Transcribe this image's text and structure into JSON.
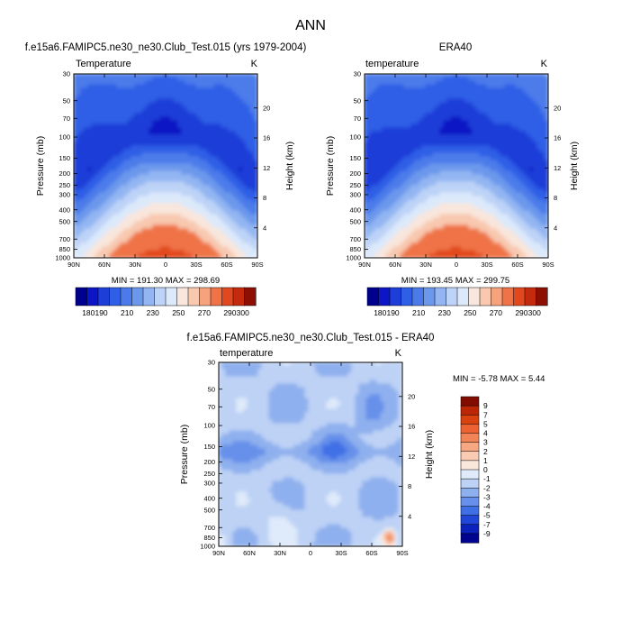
{
  "figure": {
    "main_title": "ANN"
  },
  "chart_data": [
    {
      "type": "heatmap",
      "title": "f.e15a6.FAMIPC5.ne30_ne30.Club_Test.015 (yrs 1979-2004)",
      "left_label": "Temperature",
      "units": "K",
      "xlabel": "",
      "ylabel": "Pressure (mb)",
      "y2label": "Height (km)",
      "x_ticks": [
        "90N",
        "60N",
        "30N",
        "0",
        "30S",
        "60S",
        "90S"
      ],
      "x_range": [
        90,
        -90
      ],
      "y_ticks": [
        30,
        50,
        70,
        100,
        150,
        200,
        250,
        300,
        400,
        500,
        700,
        850,
        1000
      ],
      "y_range": [
        30,
        1000
      ],
      "y_scale": "log",
      "y2_ticks": [
        4,
        8,
        12,
        16,
        20
      ],
      "stats": "MIN = 191.30  MAX = 298.69",
      "min": 191.3,
      "max": 298.69,
      "colorbar": {
        "levels": [
          180,
          190,
          200,
          210,
          220,
          230,
          240,
          250,
          260,
          270,
          280,
          290,
          300
        ],
        "labels": [
          "180",
          "190",
          "210",
          "230",
          "250",
          "270",
          "290",
          "300"
        ],
        "label_values": [
          180,
          190,
          210,
          230,
          250,
          270,
          290,
          300
        ]
      }
    },
    {
      "type": "heatmap",
      "title": "ERA40",
      "left_label": "temperature",
      "units": "K",
      "xlabel": "",
      "ylabel": "Pressure (mb)",
      "y2label": "Height (km)",
      "x_ticks": [
        "90N",
        "60N",
        "30N",
        "0",
        "30S",
        "60S",
        "90S"
      ],
      "x_range": [
        90,
        -90
      ],
      "y_ticks": [
        30,
        50,
        70,
        100,
        150,
        200,
        250,
        300,
        400,
        500,
        700,
        850,
        1000
      ],
      "y_range": [
        30,
        1000
      ],
      "y_scale": "log",
      "y2_ticks": [
        4,
        8,
        12,
        16,
        20
      ],
      "stats": "MIN = 193.45  MAX = 299.75",
      "min": 193.45,
      "max": 299.75,
      "colorbar": {
        "levels": [
          180,
          190,
          200,
          210,
          220,
          230,
          240,
          250,
          260,
          270,
          280,
          290,
          300
        ],
        "labels": [
          "180",
          "190",
          "210",
          "230",
          "250",
          "270",
          "290",
          "300"
        ],
        "label_values": [
          180,
          190,
          210,
          230,
          250,
          270,
          290,
          300
        ]
      }
    },
    {
      "type": "heatmap",
      "title": "f.e15a6.FAMIPC5.ne30_ne30.Club_Test.015 - ERA40",
      "left_label": "temperature",
      "units": "K",
      "xlabel": "",
      "ylabel": "Pressure (mb)",
      "y2label": "Height (km)",
      "x_ticks": [
        "90N",
        "60N",
        "30N",
        "0",
        "30S",
        "60S",
        "90S"
      ],
      "x_range": [
        90,
        -90
      ],
      "y_ticks": [
        30,
        50,
        70,
        100,
        150,
        200,
        250,
        300,
        400,
        500,
        700,
        850,
        1000
      ],
      "y_range": [
        30,
        1000
      ],
      "y_scale": "log",
      "y2_ticks": [
        4,
        8,
        12,
        16,
        20
      ],
      "stats": "MIN =  -5.78  MAX =   5.44",
      "min": -5.78,
      "max": 5.44,
      "colorbar": {
        "labels": [
          "9",
          "7",
          "5",
          "4",
          "3",
          "2",
          "1",
          "0",
          "-1",
          "-2",
          "-3",
          "-4",
          "-5",
          "-7",
          "-9"
        ],
        "values": [
          9,
          7,
          5,
          4,
          3,
          2,
          1,
          0,
          -1,
          -2,
          -3,
          -4,
          -5,
          -7,
          -9
        ]
      }
    }
  ],
  "colors": {
    "temperature_scale": [
      "#00008e",
      "#0c16c4",
      "#1e3ed8",
      "#2f5fe6",
      "#4b7bea",
      "#6c98ec",
      "#93b6f2",
      "#bdd3f7",
      "#dce9fb",
      "#f9e6dc",
      "#f8c8af",
      "#f5a27d",
      "#ef7347",
      "#e2481f",
      "#c42a0e",
      "#8d0f03"
    ],
    "difference_scale": [
      "#830c00",
      "#ba2606",
      "#d9410e",
      "#ec6232",
      "#f28558",
      "#f6a883",
      "#facbb3",
      "#fbe8dd",
      "#dfeafa",
      "#bdd2f5",
      "#8fb0ee",
      "#6690ea",
      "#3f6fe5",
      "#2146d8",
      "#0c22bd",
      "#00048f"
    ]
  }
}
